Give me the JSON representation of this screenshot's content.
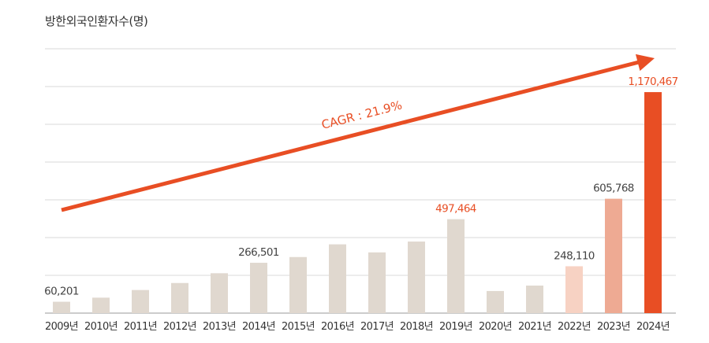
{
  "chart_data": {
    "type": "bar",
    "title": "방한외국인환자수(명)",
    "categories": [
      "2009년",
      "2010년",
      "2011년",
      "2012년",
      "2013년",
      "2014년",
      "2015년",
      "2016년",
      "2017년",
      "2018년",
      "2019년",
      "2020년",
      "2021년",
      "2022년",
      "2023년",
      "2024년"
    ],
    "values": [
      60201,
      81789,
      122297,
      159464,
      211218,
      266501,
      296889,
      364189,
      321574,
      378967,
      497464,
      117069,
      145842,
      248110,
      605768,
      1170467
    ],
    "data_labels": [
      {
        "index": 0,
        "text": "60,201"
      },
      {
        "index": 5,
        "text": "266,501"
      },
      {
        "index": 10,
        "text": "497,464"
      },
      {
        "index": 13,
        "text": "248,110"
      },
      {
        "index": 14,
        "text": "605,768"
      },
      {
        "index": 15,
        "text": "1,170,467"
      }
    ],
    "ylim": [
      0,
      1400000
    ],
    "grid": true,
    "annotation": {
      "text": "CAGR : 21.9%",
      "type": "trend-arrow"
    },
    "colors": {
      "default_bar": "#e0d8cf",
      "bar_2022": "#f7d2c3",
      "bar_2023": "#eeaa93",
      "bar_2024": "#e84e24",
      "accent": "#e84e24",
      "label_default": "#444444",
      "grid": "#d9d9d9"
    }
  }
}
